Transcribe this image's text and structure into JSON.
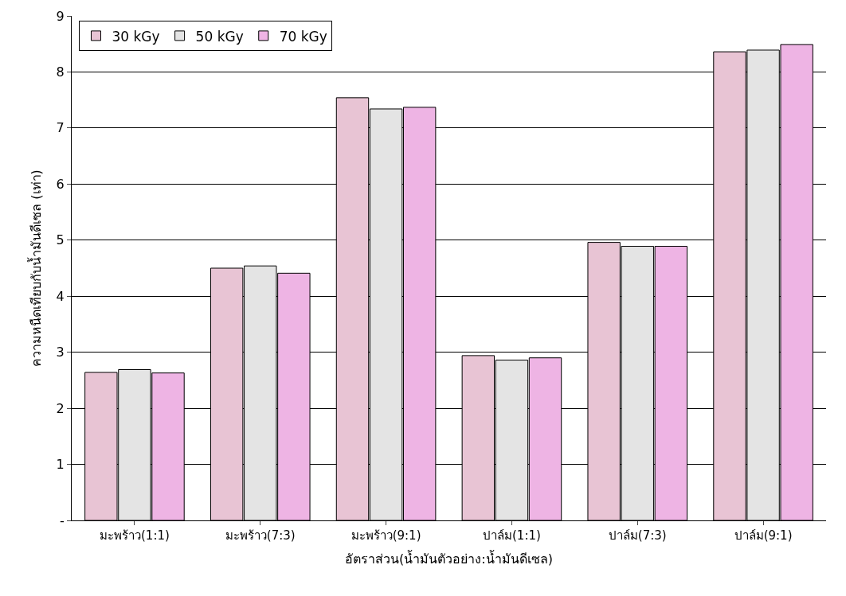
{
  "chart_data": {
    "type": "bar",
    "xlabel": "อัตราส่วน(น้ำมันตัวอย่าง:น้ำมันดีเซล)",
    "ylabel": "ความหนืดเทียบกับน้ำมันดีเซล (เท่า)",
    "categories": [
      "มะพร้าว(1:1)",
      "มะพร้าว(7:3)",
      "มะพร้าว(9:1)",
      "ปาล์ม(1:1)",
      "ปาล์ม(7:3)",
      "ปาล์ม(9:1)"
    ],
    "series": [
      {
        "name": "30 kGy",
        "color": "#e8c4d4",
        "values": [
          2.64,
          4.5,
          7.54,
          2.94,
          4.96,
          8.36
        ]
      },
      {
        "name": "50 kGy",
        "color": "#e4e4e4",
        "values": [
          2.69,
          4.54,
          7.34,
          2.86,
          4.89,
          8.39
        ]
      },
      {
        "name": "70 kGy",
        "color": "#eeb4e4",
        "values": [
          2.63,
          4.41,
          7.37,
          2.9,
          4.89,
          8.49
        ]
      }
    ],
    "ylim": [
      0,
      9
    ],
    "yticks": [
      {
        "value": 0,
        "label": "-"
      },
      1,
      2,
      3,
      4,
      5,
      6,
      7,
      8,
      9
    ],
    "grid": "y",
    "legend": "top left"
  }
}
